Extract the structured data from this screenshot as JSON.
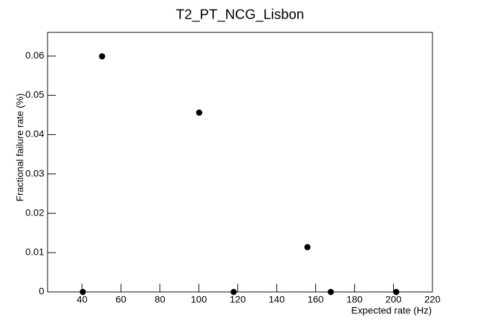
{
  "chart_data": {
    "type": "scatter",
    "title": "T2_PT_NCG_Lisbon",
    "x_label": "Expected rate (Hz)",
    "y_label": "Fractional failure rate (%)",
    "series": [
      {
        "name": "T2_PT_NCG_Lisbon",
        "color": "#000000",
        "x": [
          40.4,
          50.3,
          100.2,
          117.9,
          155.8,
          167.8,
          201.4
        ],
        "values": [
          0,
          0.0599,
          0.0456,
          0,
          0.0114,
          0,
          0
        ]
      }
    ],
    "xlim": [
      22.3,
      220
    ],
    "xticks": [
      40,
      60,
      80,
      100,
      120,
      140,
      160,
      180,
      200,
      220
    ],
    "ylim": [
      0,
      0.066
    ],
    "yticks": [
      0,
      0.01,
      0.02,
      0.03,
      0.04,
      0.05,
      0.06
    ],
    "grid": false
  }
}
